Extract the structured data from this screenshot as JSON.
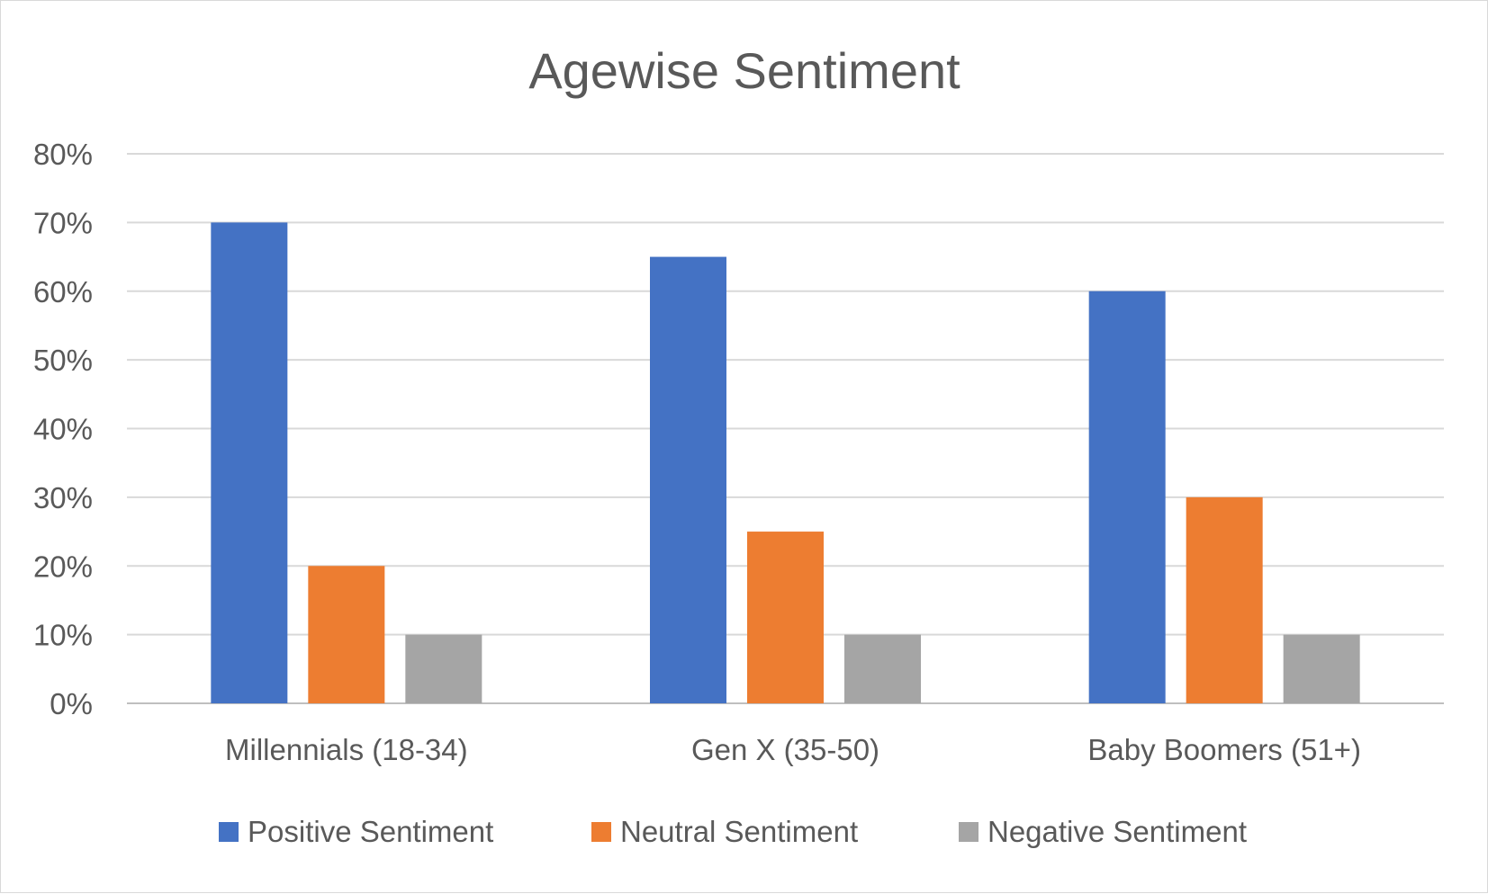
{
  "chart_data": {
    "type": "bar",
    "title": "Agewise Sentiment",
    "xlabel": "",
    "ylabel": "",
    "categories": [
      "Millennials (18-34)",
      "Gen X (35-50)",
      "Baby Boomers (51+)"
    ],
    "series": [
      {
        "name": "Positive Sentiment",
        "values": [
          70,
          65,
          60
        ],
        "color": "#4472c4"
      },
      {
        "name": "Neutral Sentiment",
        "values": [
          20,
          25,
          30
        ],
        "color": "#ed7d31"
      },
      {
        "name": "Negative Sentiment",
        "values": [
          10,
          10,
          10
        ],
        "color": "#a5a5a5"
      }
    ],
    "ylim": [
      0,
      80
    ],
    "y_ticks": [
      0,
      10,
      20,
      30,
      40,
      50,
      60,
      70,
      80
    ],
    "y_tick_labels": [
      "0%",
      "10%",
      "20%",
      "30%",
      "40%",
      "50%",
      "60%",
      "70%",
      "80%"
    ],
    "grid": true,
    "legend_position": "bottom"
  }
}
